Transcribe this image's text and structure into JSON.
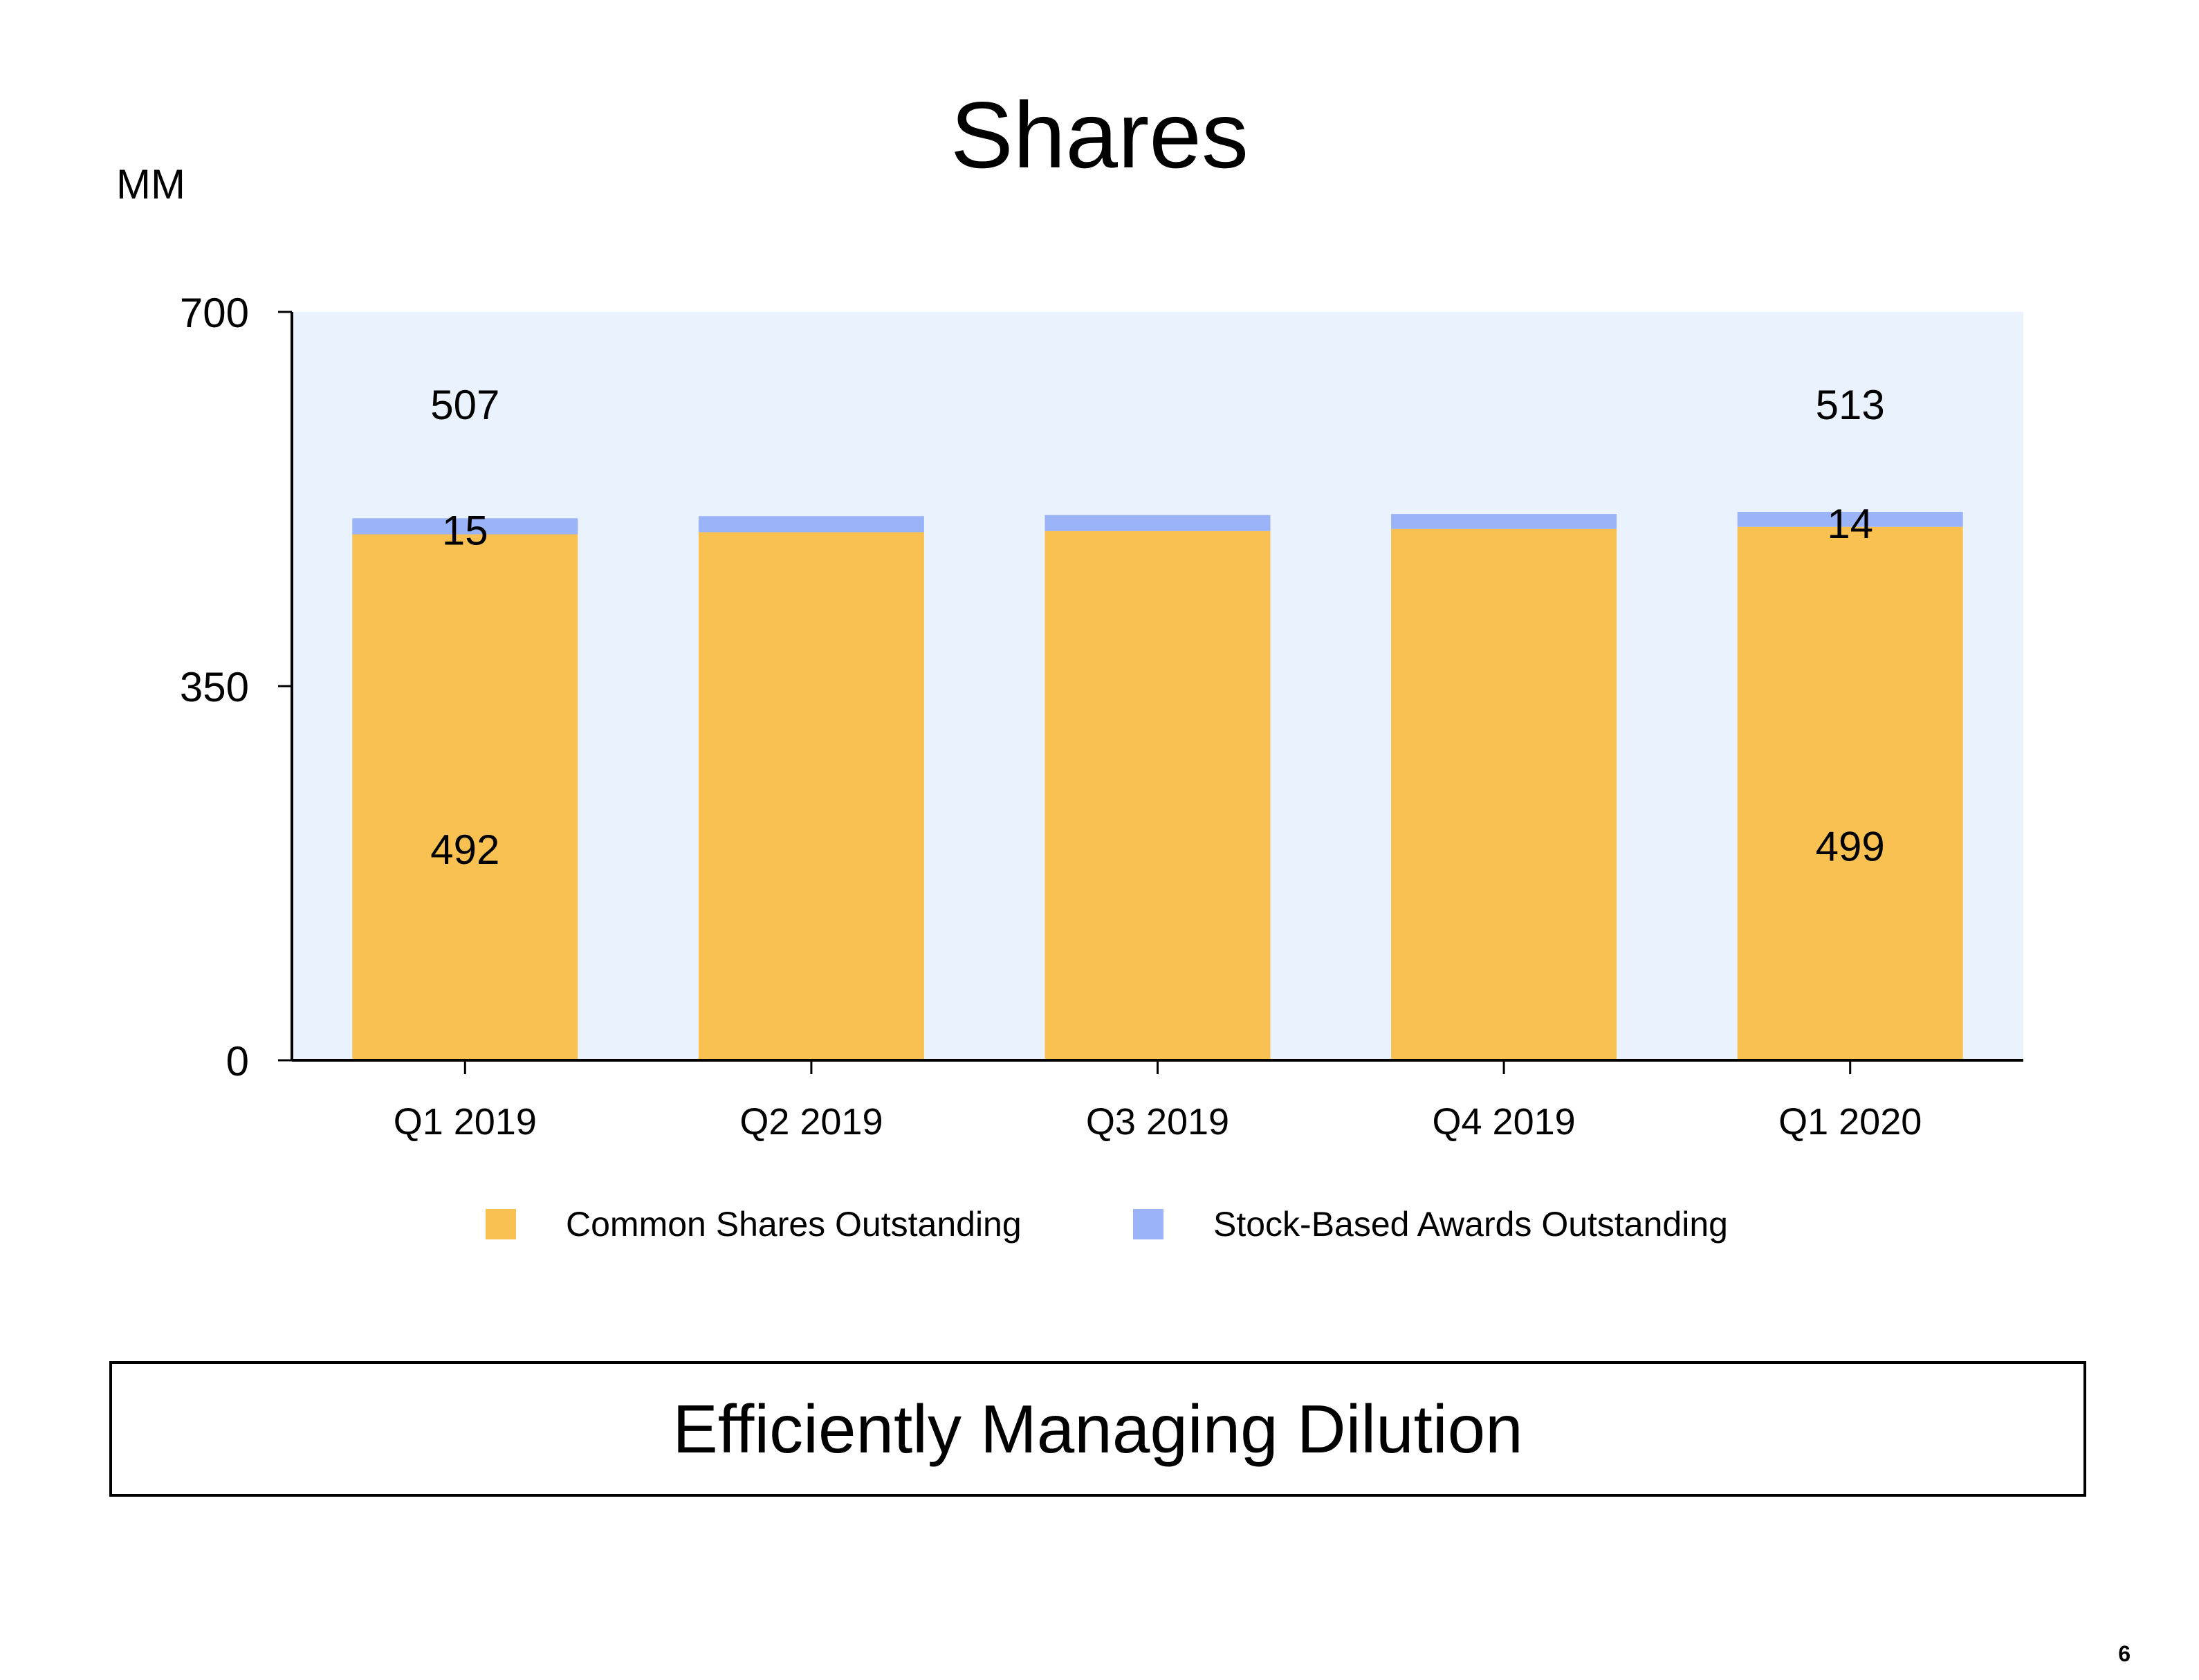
{
  "slide": {
    "title": "Shares",
    "unit_label": "MM",
    "callout": "Efficiently Managing Dilution",
    "page_number": "6"
  },
  "colors": {
    "common": "#F8C152",
    "awards": "#9BB3F7",
    "plot_bg": "#EAF2FD",
    "axis": "#000000"
  },
  "chart_data": {
    "type": "bar",
    "stacked": true,
    "categories": [
      "Q1 2019",
      "Q2 2019",
      "Q3 2019",
      "Q4 2019",
      "Q1 2020"
    ],
    "series": [
      {
        "name": "Common Shares Outstanding",
        "values": [
          492,
          494,
          495,
          497,
          499
        ],
        "color": "#F8C152"
      },
      {
        "name": "Stock-Based Awards Outstanding",
        "values": [
          15,
          15,
          15,
          14,
          14
        ],
        "color": "#9BB3F7"
      }
    ],
    "ylim": [
      0,
      700
    ],
    "yticks": [
      "0",
      "350",
      "700"
    ],
    "ytick_values": [
      0,
      350,
      700
    ],
    "legend_position": "bottom",
    "grid": false,
    "annotations": [
      {
        "category_index": 0,
        "series_index": 0,
        "label": "492"
      },
      {
        "category_index": 0,
        "series_index": 1,
        "label": "15"
      },
      {
        "category_index": 0,
        "series_index": "total",
        "label": "507"
      },
      {
        "category_index": 4,
        "series_index": 0,
        "label": "499"
      },
      {
        "category_index": 4,
        "series_index": 1,
        "label": "14"
      },
      {
        "category_index": 4,
        "series_index": "total",
        "label": "513"
      }
    ]
  }
}
